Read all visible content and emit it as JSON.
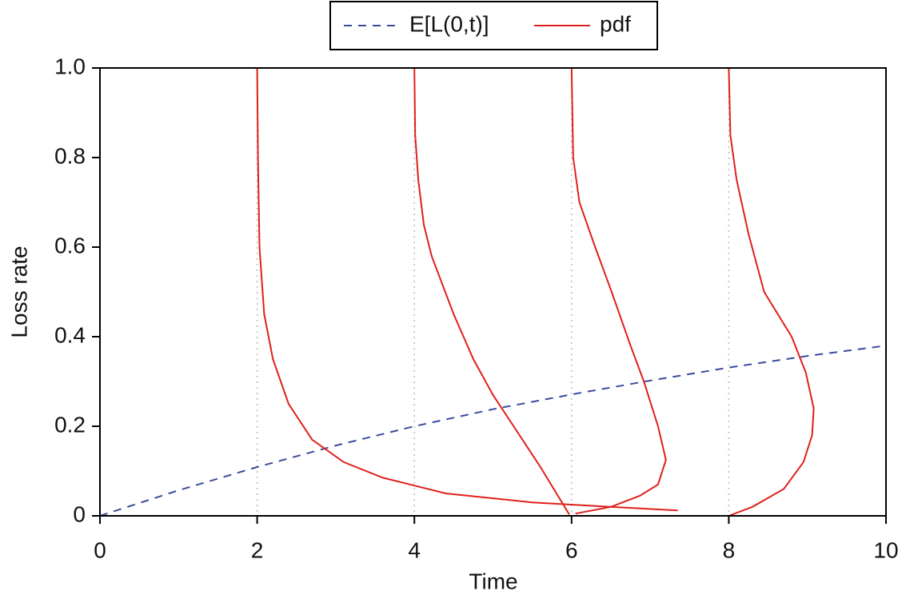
{
  "chart_data": {
    "type": "line",
    "xlabel": "Time",
    "ylabel": "Loss rate",
    "xlim": [
      0,
      10
    ],
    "ylim": [
      0,
      1
    ],
    "xticks": [
      0,
      2,
      4,
      6,
      8,
      10
    ],
    "yticks": [
      0,
      0.2,
      0.4,
      0.6,
      0.8,
      {
        "value": 1,
        "label": "1.0"
      }
    ],
    "vlines": [
      2,
      4,
      6,
      8
    ],
    "legend": "top",
    "series": [
      {
        "name": "E[L(0,t)]",
        "color": "#3b4a9c",
        "style": "dashed",
        "x": [
          0,
          1,
          2,
          3,
          4,
          5,
          6,
          7,
          8,
          9,
          10
        ],
        "values": [
          0,
          0.057,
          0.109,
          0.157,
          0.2,
          0.238,
          0.271,
          0.302,
          0.331,
          0.357,
          0.38
        ]
      },
      {
        "name": "pdf",
        "color": "#e0201b",
        "style": "solid",
        "x": [
          2,
          2.01,
          2.03,
          2.09,
          2.2,
          2.4,
          2.7,
          3.1,
          3.6,
          4.4,
          5.5,
          6.5,
          7.35,
          null,
          4,
          4.01,
          4.05,
          4.12,
          4.22,
          4.5,
          4.75,
          5.0,
          5.3,
          5.6,
          5.97,
          null,
          6,
          6.02,
          6.1,
          6.3,
          6.51,
          6.75,
          6.92,
          7.1,
          7.2,
          7.1,
          6.87,
          6.5,
          6.05,
          null,
          8,
          8.02,
          8.1,
          8.25,
          8.45,
          8.8,
          8.98,
          9.08,
          9.06,
          8.95,
          8.7,
          8.3,
          8.0
        ],
        "values": [
          1,
          0.8,
          0.6,
          0.45,
          0.35,
          0.25,
          0.17,
          0.12,
          0.085,
          0.05,
          0.03,
          0.02,
          0.012,
          null,
          1,
          0.85,
          0.75,
          0.65,
          0.58,
          0.45,
          0.35,
          0.27,
          0.19,
          0.11,
          0.003,
          null,
          1,
          0.8,
          0.7,
          0.6,
          0.5,
          0.38,
          0.3,
          0.2,
          0.125,
          0.07,
          0.045,
          0.02,
          0.005,
          null,
          1,
          0.85,
          0.75,
          0.63,
          0.5,
          0.4,
          0.32,
          0.24,
          0.18,
          0.12,
          0.06,
          0.02,
          0
        ]
      }
    ]
  }
}
